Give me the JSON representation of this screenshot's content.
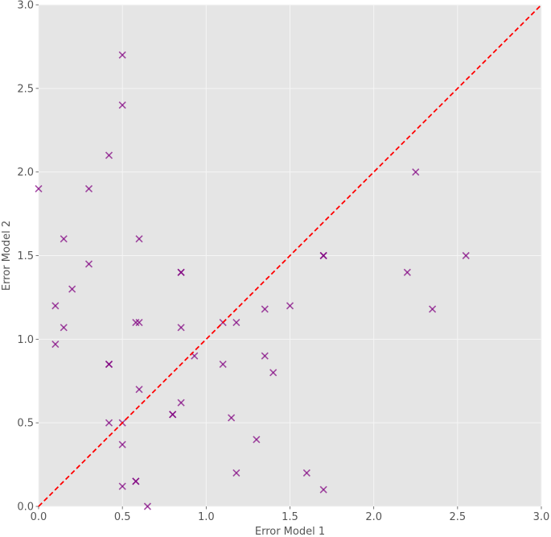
{
  "chart_data": {
    "type": "scatter",
    "title": "",
    "xlabel": "Error Model 1",
    "ylabel": "Error Model 2",
    "xlim": [
      0.0,
      3.0
    ],
    "ylim": [
      0.0,
      3.0
    ],
    "grid": true,
    "legend": null,
    "x_ticks": [
      "0.0",
      "0.5",
      "1.0",
      "1.5",
      "2.0",
      "2.5",
      "3.0"
    ],
    "y_ticks": [
      "0.0",
      "0.5",
      "1.0",
      "1.5",
      "2.0",
      "2.5",
      "3.0"
    ],
    "reference_line": {
      "description": "y = x diagonal",
      "style": "dashed",
      "color": "#ff0000",
      "from": [
        0.0,
        0.0
      ],
      "to": [
        3.0,
        3.0
      ]
    },
    "marker": {
      "symbol": "x",
      "color": "#800080",
      "alpha": 0.7
    },
    "points": [
      {
        "x": 0.0,
        "y": 1.9
      },
      {
        "x": 0.1,
        "y": 1.2
      },
      {
        "x": 0.1,
        "y": 0.97
      },
      {
        "x": 0.15,
        "y": 1.6
      },
      {
        "x": 0.15,
        "y": 1.07
      },
      {
        "x": 0.2,
        "y": 1.3
      },
      {
        "x": 0.3,
        "y": 1.9
      },
      {
        "x": 0.3,
        "y": 1.45
      },
      {
        "x": 0.42,
        "y": 2.1
      },
      {
        "x": 0.42,
        "y": 0.85
      },
      {
        "x": 0.42,
        "y": 0.85
      },
      {
        "x": 0.42,
        "y": 0.5
      },
      {
        "x": 0.5,
        "y": 2.7
      },
      {
        "x": 0.5,
        "y": 2.4
      },
      {
        "x": 0.5,
        "y": 0.5
      },
      {
        "x": 0.5,
        "y": 0.37
      },
      {
        "x": 0.5,
        "y": 0.12
      },
      {
        "x": 0.58,
        "y": 1.1
      },
      {
        "x": 0.58,
        "y": 0.15
      },
      {
        "x": 0.58,
        "y": 0.15
      },
      {
        "x": 0.6,
        "y": 1.6
      },
      {
        "x": 0.6,
        "y": 1.1
      },
      {
        "x": 0.6,
        "y": 0.7
      },
      {
        "x": 0.65,
        "y": 0.0
      },
      {
        "x": 0.8,
        "y": 0.55
      },
      {
        "x": 0.8,
        "y": 0.55
      },
      {
        "x": 0.85,
        "y": 1.4
      },
      {
        "x": 0.85,
        "y": 1.4
      },
      {
        "x": 0.85,
        "y": 1.07
      },
      {
        "x": 0.85,
        "y": 0.62
      },
      {
        "x": 0.93,
        "y": 0.9
      },
      {
        "x": 1.1,
        "y": 1.1
      },
      {
        "x": 1.1,
        "y": 0.85
      },
      {
        "x": 1.15,
        "y": 0.53
      },
      {
        "x": 1.18,
        "y": 1.1
      },
      {
        "x": 1.18,
        "y": 0.2
      },
      {
        "x": 1.3,
        "y": 0.4
      },
      {
        "x": 1.35,
        "y": 1.18
      },
      {
        "x": 1.35,
        "y": 0.9
      },
      {
        "x": 1.4,
        "y": 0.8
      },
      {
        "x": 1.5,
        "y": 1.2
      },
      {
        "x": 1.6,
        "y": 0.2
      },
      {
        "x": 1.7,
        "y": 1.5
      },
      {
        "x": 1.7,
        "y": 1.5
      },
      {
        "x": 1.7,
        "y": 0.1
      },
      {
        "x": 2.2,
        "y": 1.4
      },
      {
        "x": 2.25,
        "y": 2.0
      },
      {
        "x": 2.35,
        "y": 1.18
      },
      {
        "x": 2.55,
        "y": 1.5
      }
    ]
  },
  "colors": {
    "plot_background": "#e5e5e5",
    "grid": "#f5f5f5",
    "tick_text": "#555555",
    "marker": "#800080",
    "reference_line": "#ff0000"
  }
}
